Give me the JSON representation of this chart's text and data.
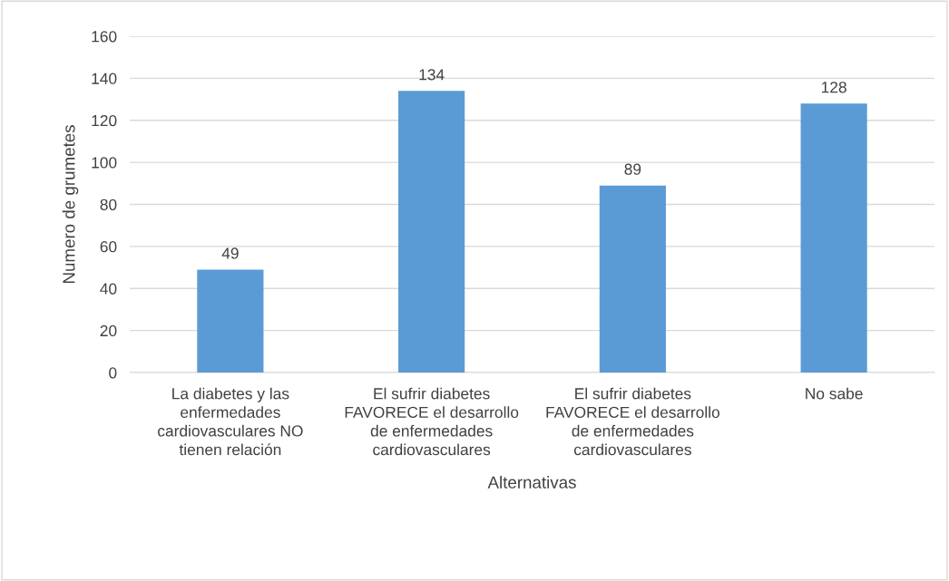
{
  "chart_data": {
    "type": "bar",
    "xlabel": "Alternativas",
    "ylabel": "Numero de grumetes",
    "categories": [
      "La diabetes y las enfermedades cardiovasculares NO tienen relación",
      "El sufrir diabetes FAVORECE el desarrollo de enfermedades cardiovasculares",
      "El sufrir diabetes FAVORECE el desarrollo de enfermedades cardiovasculares",
      "No sabe"
    ],
    "values": [
      49,
      134,
      89,
      128
    ],
    "color": "#5b9bd5",
    "ylim": [
      0,
      160
    ],
    "yticks": [
      0,
      20,
      40,
      60,
      80,
      100,
      120,
      140,
      160
    ],
    "grid": "y",
    "data_labels": true
  }
}
